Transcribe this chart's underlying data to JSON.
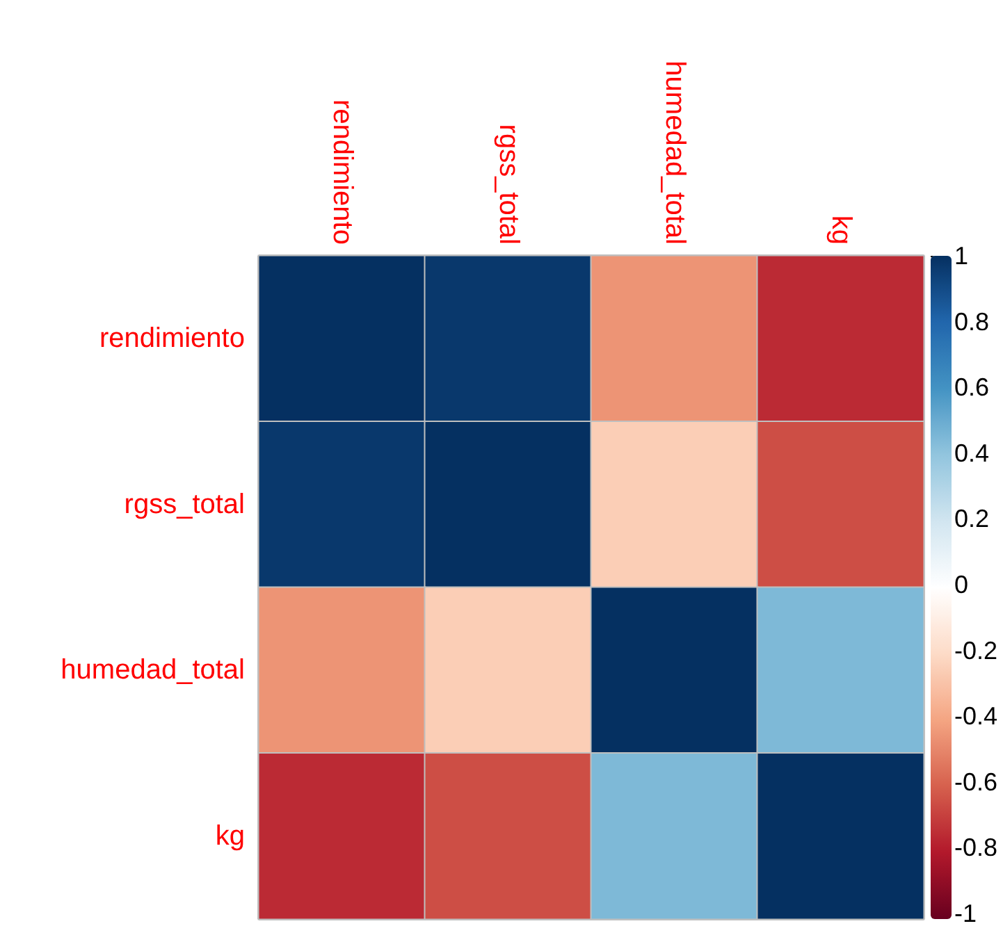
{
  "chart_data": {
    "type": "heatmap",
    "categories": [
      "rendimiento",
      "rgss_total",
      "humedad_total",
      "kg"
    ],
    "y_categories": [
      "rendimiento",
      "rgss_total",
      "humedad_total",
      "kg"
    ],
    "cells": [
      [
        1,
        0.97,
        -0.45,
        -0.75
      ],
      [
        0.97,
        1,
        -0.25,
        -0.65
      ],
      [
        -0.45,
        -0.25,
        1,
        0.45
      ],
      [
        -0.75,
        -0.65,
        0.45,
        1
      ]
    ],
    "clim": [
      -1,
      1
    ],
    "cticks": [
      -1,
      -0.8,
      -0.6,
      -0.4,
      -0.2,
      0,
      0.2,
      0.4,
      0.6,
      0.8,
      1
    ]
  }
}
